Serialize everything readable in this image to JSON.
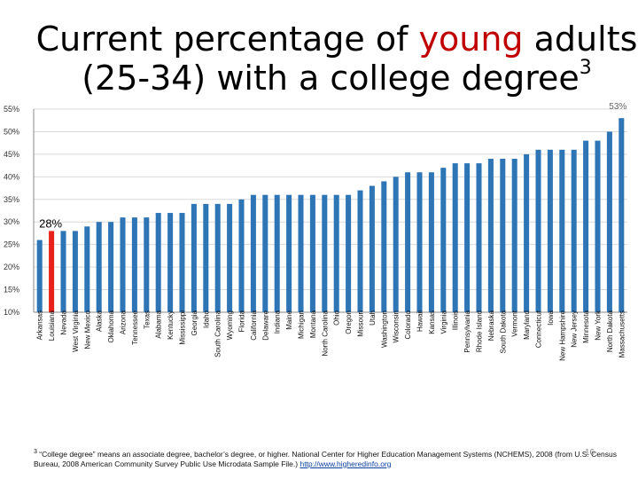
{
  "slide": {
    "title_before": "Current percentage of ",
    "title_highlight": "young",
    "title_after": " adults",
    "title_line2": "(25-34) with a college degree",
    "title_superscript": "3",
    "footnote_marker": "3",
    "footnote_text": " “College degree” means an associate degree, bachelor’s degree, or higher. National Center for Higher Education Management Systems (NCHEMS), 2008 (from U.S. Census Bureau, 2008 American Community Survey Public Use Microdata Sample File.) ",
    "footnote_link": "http://www.higheredinfo.org",
    "page_number": "16"
  },
  "chart_data": {
    "type": "bar",
    "ylim": [
      10,
      55
    ],
    "ytick_labels": [
      "10%",
      "15%",
      "20%",
      "25%",
      "30%",
      "35%",
      "40%",
      "45%",
      "50%",
      "55%"
    ],
    "ytick_values": [
      10,
      15,
      20,
      25,
      30,
      35,
      40,
      45,
      50,
      55
    ],
    "categories": [
      "Arkansas",
      "Louisiana",
      "Nevada",
      "West Virginia",
      "New Mexico",
      "Alaska",
      "Oklahoma",
      "Arizona",
      "Tennessee",
      "Texas",
      "Alabama",
      "Kentucky",
      "Mississippi",
      "Georgia",
      "Idaho",
      "South Carolina",
      "Wyoming",
      "Florida",
      "California",
      "Delaware",
      "Indiana",
      "Maine",
      "Michigan",
      "Montana",
      "North Carolina",
      "Ohio",
      "Oregon",
      "Missouri",
      "Utah",
      "Washington",
      "Wisconsin",
      "Colorado",
      "Hawaii",
      "Kansas",
      "Virginia",
      "Illinois",
      "Pennsylvania",
      "Rhode Island",
      "Nebraska",
      "South Dakota",
      "Vermont",
      "Maryland",
      "Connecticut",
      "Iowa",
      "New Hampshire",
      "New Jersey",
      "Minnesota",
      "New York",
      "North Dakota",
      "Massachusetts"
    ],
    "values": [
      26,
      28,
      28,
      28,
      29,
      30,
      30,
      31,
      31,
      31,
      32,
      32,
      32,
      34,
      34,
      34,
      34,
      35,
      36,
      36,
      36,
      36,
      36,
      36,
      36,
      36,
      36,
      37,
      38,
      39,
      40,
      41,
      41,
      41,
      42,
      43,
      43,
      43,
      44,
      44,
      44,
      45,
      46,
      46,
      46,
      46,
      48,
      48,
      50,
      53
    ],
    "highlight_category": "Louisiana",
    "annotations": [
      {
        "category": "Louisiana",
        "text": "28%"
      },
      {
        "category": "Massachusetts",
        "text": "53%"
      }
    ],
    "colors": {
      "bar": "#2e75b6",
      "highlight": "#e8211a",
      "grid": "#d9d9d9",
      "axis": "#888888"
    },
    "grid": true
  }
}
